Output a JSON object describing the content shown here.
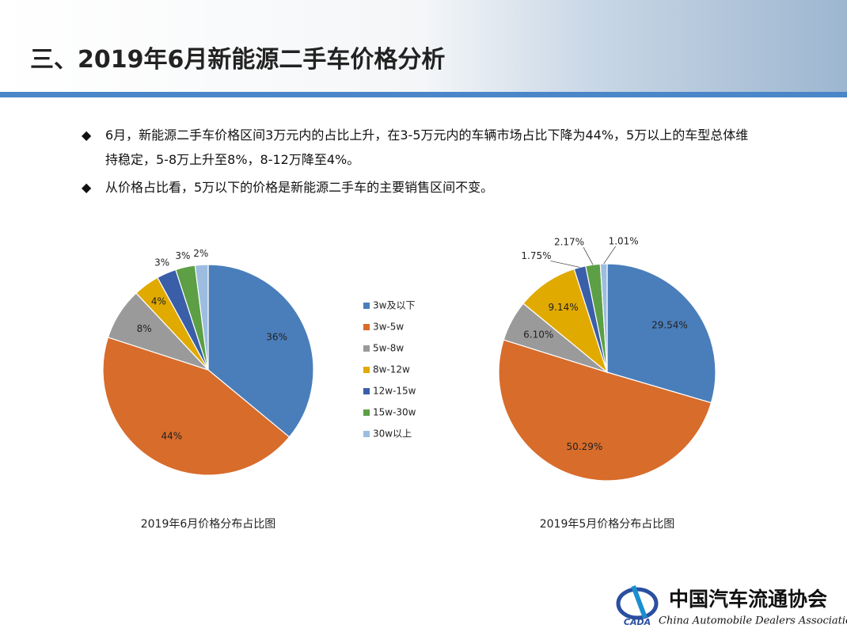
{
  "header": {
    "title": "三、2019年6月新能源二手车价格分析"
  },
  "bullets": [
    "6月，新能源二手车价格区间3万元内的占比上升，在3-5万元内的车辆市场占比下降为44%，5万以上的车型总体维持稳定，5-8万上升至8%，8-12万降至4%。",
    "从价格占比看，5万以下的价格是新能源二手车的主要销售区间不变。"
  ],
  "legend": {
    "categories": [
      "3w及以下",
      "3w-5w",
      "5w-8w",
      "8w-12w",
      "12w-15w",
      "15w-30w",
      "30w以上"
    ],
    "colors": [
      "#4a7ebb",
      "#d86c2b",
      "#9a9a9a",
      "#e1aa00",
      "#3a5ea8",
      "#5c9f45",
      "#9dbde0"
    ]
  },
  "chart_data": [
    {
      "type": "pie",
      "title": "2019年6月价格分布占比图",
      "values": [
        36,
        44,
        8,
        4,
        3,
        3,
        2
      ],
      "value_labels": [
        "36%",
        "44%",
        "8%",
        "4%",
        "3%",
        "3%",
        "2%"
      ]
    },
    {
      "type": "pie",
      "title": "2019年5月价格分布占比图",
      "values": [
        29.54,
        50.29,
        6.1,
        9.14,
        1.75,
        2.17,
        1.01
      ],
      "value_labels": [
        "29.54%",
        "50.29%",
        "6.10%",
        "9.14%",
        "1.75%",
        "2.17%",
        "1.01%"
      ]
    }
  ],
  "logo": {
    "name": "中国汽车流通协会",
    "english": "China Automobile Dealers Association",
    "abbr": "CADA"
  }
}
